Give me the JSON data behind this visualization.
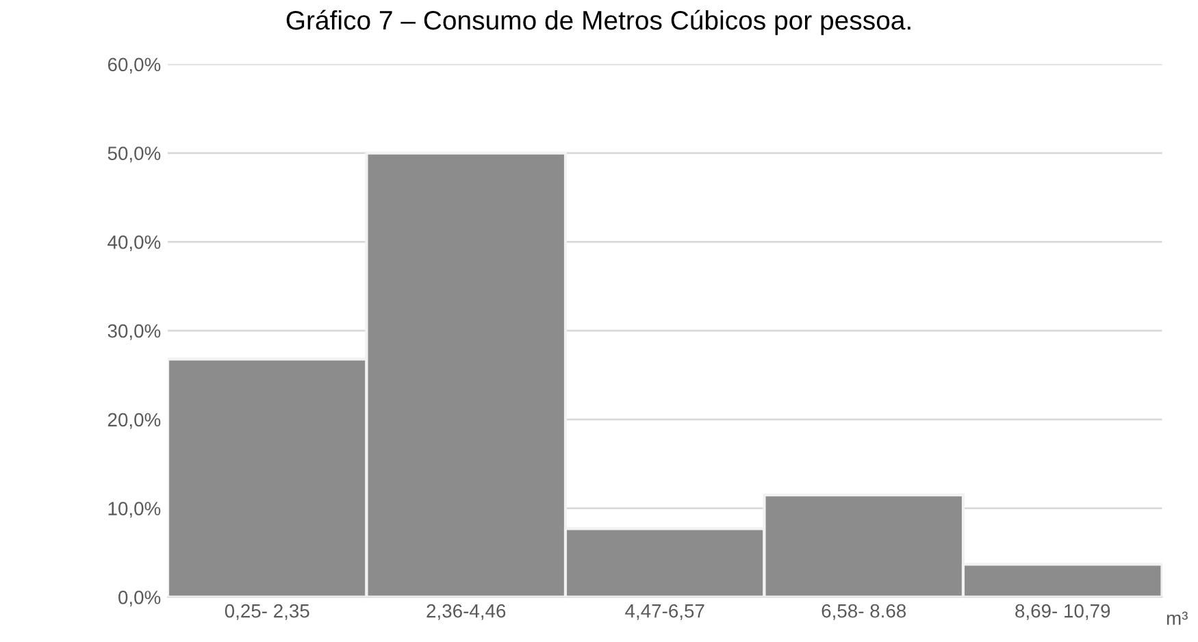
{
  "chart_data": {
    "type": "bar",
    "title": "Gráfico 7 – Consumo de Metros Cúbicos por pessoa.",
    "xlabel": "m³",
    "categories": [
      "0,25- 2,35",
      "2,36-4,46",
      "4,47-6,57",
      "6,58- 8.68",
      "8,69- 10,79"
    ],
    "values": [
      26.8,
      50.0,
      7.7,
      11.5,
      3.7
    ],
    "color": "#8c8c8c",
    "ylim": [
      0,
      60
    ],
    "yticks": [
      {
        "value": 0,
        "label": "0,0%"
      },
      {
        "value": 10,
        "label": "10,0%"
      },
      {
        "value": 20,
        "label": "20,0%"
      },
      {
        "value": 30,
        "label": "30,0%"
      },
      {
        "value": 40,
        "label": "40,0%"
      },
      {
        "value": 50,
        "label": "50,0%"
      },
      {
        "value": 60,
        "label": "60,0%"
      }
    ],
    "grid": "y",
    "legend": false
  }
}
